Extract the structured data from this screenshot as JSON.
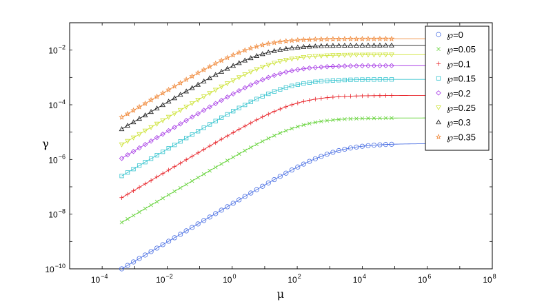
{
  "chart_data": {
    "type": "scatter",
    "title": "",
    "xlabel": "μ",
    "ylabel": "γ",
    "x_scale": "log",
    "y_scale": "log",
    "xlim": [
      1e-05,
      100000000
    ],
    "ylim": [
      1e-10,
      0.1
    ],
    "x_ticks": [
      {
        "base": "10",
        "exp": "−4",
        "value": 0.0001
      },
      {
        "base": "10",
        "exp": "−2",
        "value": 0.01
      },
      {
        "base": "10",
        "exp": "0",
        "value": 1
      },
      {
        "base": "10",
        "exp": "2",
        "value": 100
      },
      {
        "base": "10",
        "exp": "4",
        "value": 10000
      },
      {
        "base": "10",
        "exp": "6",
        "value": 1000000
      },
      {
        "base": "10",
        "exp": "8",
        "value": 100000000
      }
    ],
    "y_ticks": [
      {
        "base": "10",
        "exp": "−2",
        "value": 0.01
      },
      {
        "base": "10",
        "exp": "−4",
        "value": 0.0001
      },
      {
        "base": "10",
        "exp": "−6",
        "value": 1e-06
      },
      {
        "base": "10",
        "exp": "−8",
        "value": 1e-08
      },
      {
        "base": "10",
        "exp": "−10",
        "value": 1e-10
      }
    ],
    "grid": false,
    "legend_position": "top-right",
    "marker_x_range": [
      0.0004,
      80000
    ],
    "line_x_range": [
      0.0004,
      10000000
    ],
    "series": [
      {
        "name": "℘=0",
        "color": "#4a6fe3",
        "marker": "circle",
        "plateau": 3.8e-06,
        "start_value": 1e-10
      },
      {
        "name": "℘=0.05",
        "color": "#66d33b",
        "marker": "x",
        "plateau": 3.3e-05,
        "start_value": 5e-09
      },
      {
        "name": "℘=0.1",
        "color": "#e8242a",
        "marker": "plus",
        "plateau": 0.00022,
        "start_value": 4e-08
      },
      {
        "name": "℘=0.15",
        "color": "#37c4cf",
        "marker": "square",
        "plateau": 0.00085,
        "start_value": 2.5e-07
      },
      {
        "name": "℘=0.2",
        "color": "#a83ee6",
        "marker": "diamond",
        "plateau": 0.0027,
        "start_value": 1.1e-06
      },
      {
        "name": "℘=0.25",
        "color": "#cde336",
        "marker": "triangle-down",
        "plateau": 0.0068,
        "start_value": 3.5e-06
      },
      {
        "name": "℘=0.3",
        "color": "#1a1a1a",
        "marker": "triangle-up",
        "plateau": 0.015,
        "start_value": 1.3e-05
      },
      {
        "name": "℘=0.35",
        "color": "#f08a3c",
        "marker": "star",
        "plateau": 0.026,
        "start_value": 3.5e-05
      }
    ]
  }
}
